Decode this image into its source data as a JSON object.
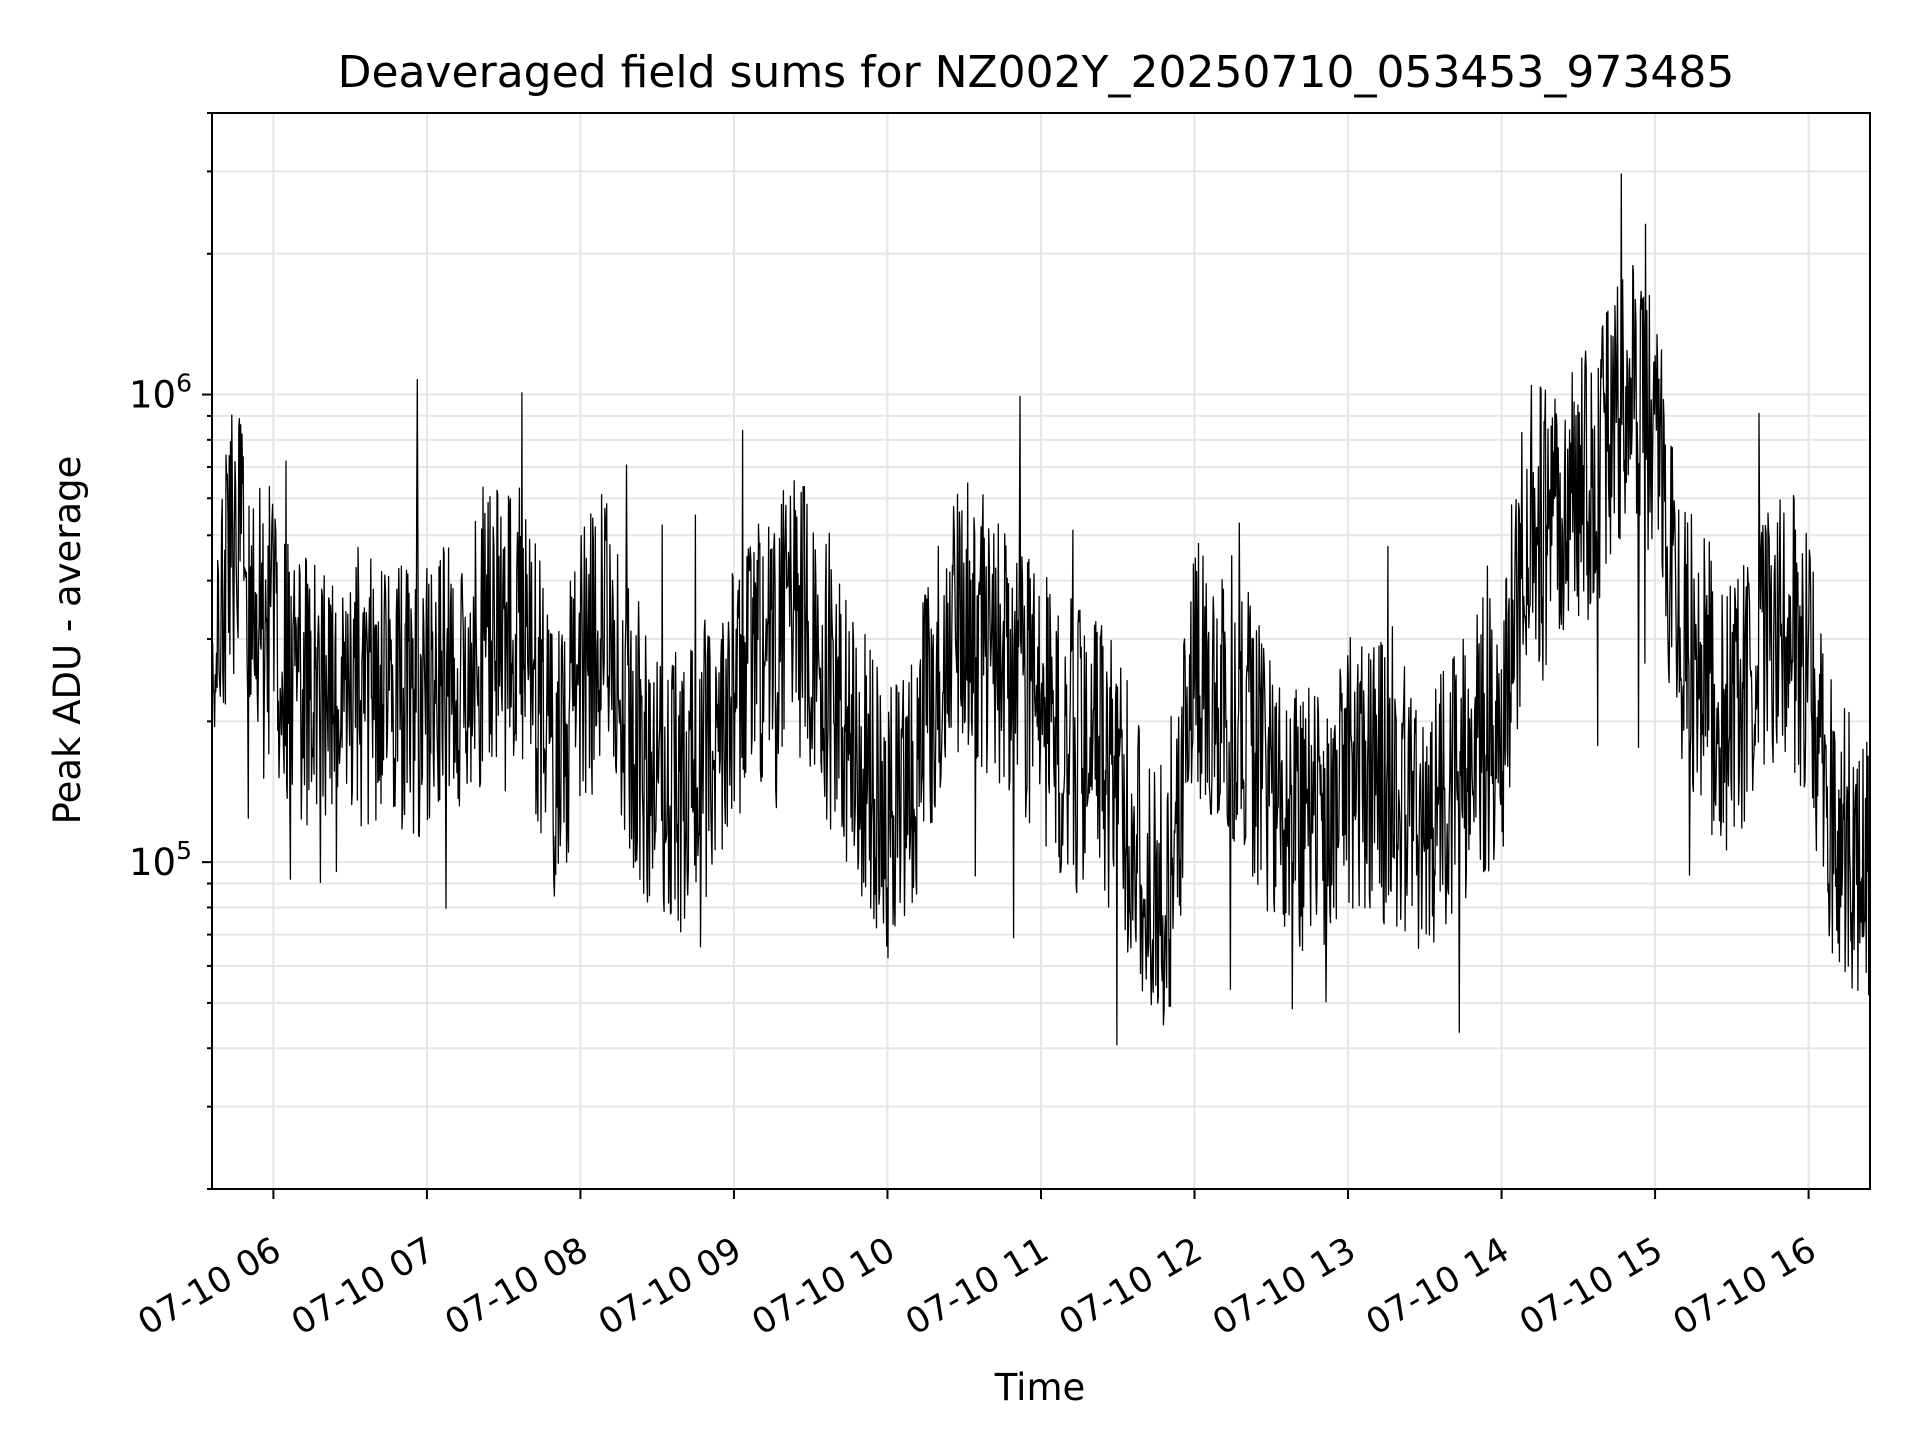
{
  "chart_data": {
    "type": "line",
    "title": "Deaveraged field sums for NZ002Y_20250710_053453_973485",
    "xlabel": "Time",
    "ylabel": "Peak ADU - average",
    "x_range": [
      "2025-07-10 05:36",
      "2025-07-10 16:24"
    ],
    "y_scale": "log",
    "ylim": [
      20000,
      4000000
    ],
    "y_ticks": [
      {
        "base": "10",
        "exp": "5",
        "value": 100000
      },
      {
        "base": "10",
        "exp": "6",
        "value": 1000000
      }
    ],
    "x_tick_labels": [
      "07-10 06",
      "07-10 07",
      "07-10 08",
      "07-10 09",
      "07-10 10",
      "07-10 11",
      "07-10 12",
      "07-10 13",
      "07-10 14",
      "07-10 15",
      "07-10 16"
    ],
    "grid": true,
    "line_color": "#000000",
    "grid_color": "#e6e6e6",
    "series": [
      {
        "x": [
          "2025-07-10 05:36",
          "2025-07-10 05:45",
          "2025-07-10 05:55",
          "2025-07-10 06:05",
          "2025-07-10 06:15",
          "2025-07-10 06:30",
          "2025-07-10 06:45",
          "2025-07-10 07:00",
          "2025-07-10 07:10",
          "2025-07-10 07:20",
          "2025-07-10 07:30",
          "2025-07-10 07:40",
          "2025-07-10 07:50",
          "2025-07-10 08:00",
          "2025-07-10 08:10",
          "2025-07-10 08:20",
          "2025-07-10 08:30",
          "2025-07-10 08:40",
          "2025-07-10 08:50",
          "2025-07-10 09:00",
          "2025-07-10 09:10",
          "2025-07-10 09:20",
          "2025-07-10 09:30",
          "2025-07-10 09:40",
          "2025-07-10 09:50",
          "2025-07-10 10:00",
          "2025-07-10 10:10",
          "2025-07-10 10:20",
          "2025-07-10 10:30",
          "2025-07-10 10:40",
          "2025-07-10 10:50",
          "2025-07-10 11:00",
          "2025-07-10 11:10",
          "2025-07-10 11:20",
          "2025-07-10 11:30",
          "2025-07-10 11:40",
          "2025-07-10 11:50",
          "2025-07-10 12:00",
          "2025-07-10 12:10",
          "2025-07-10 12:20",
          "2025-07-10 12:30",
          "2025-07-10 12:40",
          "2025-07-10 12:50",
          "2025-07-10 13:00",
          "2025-07-10 13:10",
          "2025-07-10 13:20",
          "2025-07-10 13:30",
          "2025-07-10 13:40",
          "2025-07-10 13:50",
          "2025-07-10 14:00",
          "2025-07-10 14:10",
          "2025-07-10 14:20",
          "2025-07-10 14:30",
          "2025-07-10 14:40",
          "2025-07-10 14:50",
          "2025-07-10 15:00",
          "2025-07-10 15:10",
          "2025-07-10 15:20",
          "2025-07-10 15:30",
          "2025-07-10 15:40",
          "2025-07-10 15:50",
          "2025-07-10 16:00",
          "2025-07-10 16:10",
          "2025-07-10 16:24"
        ],
        "values": [
          300000,
          500000,
          350000,
          250000,
          230000,
          240000,
          220000,
          220000,
          250000,
          280000,
          350000,
          300000,
          150000,
          250000,
          350000,
          180000,
          150000,
          140000,
          170000,
          220000,
          280000,
          350000,
          320000,
          200000,
          160000,
          120000,
          150000,
          250000,
          350000,
          300000,
          250000,
          200000,
          180000,
          170000,
          150000,
          90000,
          80000,
          250000,
          250000,
          200000,
          150000,
          120000,
          120000,
          150000,
          160000,
          130000,
          110000,
          150000,
          180000,
          200000,
          550000,
          500000,
          600000,
          750000,
          1000000,
          800000,
          300000,
          250000,
          200000,
          250000,
          350000,
          250000,
          120000,
          90000
        ]
      }
    ]
  }
}
